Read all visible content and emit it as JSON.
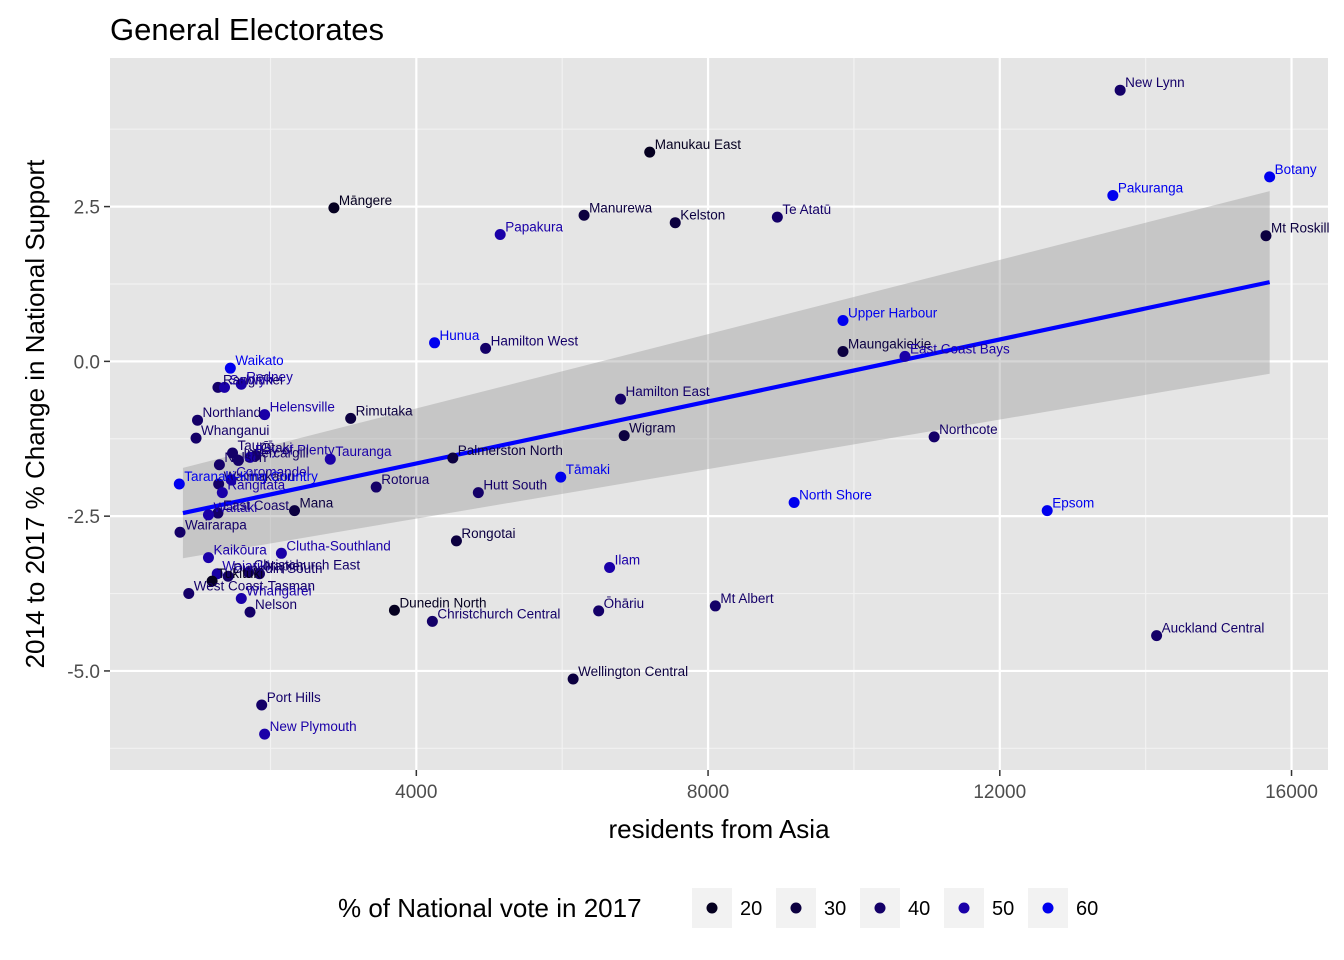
{
  "chart_data": {
    "type": "scatter",
    "title": "General Electorates",
    "xlabel": "residents from Asia",
    "ylabel": "2014 to 2017 % Change in National Support",
    "xlim": [
      -200,
      16500
    ],
    "ylim": [
      -6.6,
      4.9
    ],
    "x_ticks": [
      4000,
      8000,
      12000,
      16000
    ],
    "x_tick_labels": [
      "4000",
      "8000",
      "12000",
      "16000"
    ],
    "y_ticks": [
      2.5,
      0.0,
      -2.5,
      -5.0
    ],
    "y_tick_labels": [
      "2.5",
      "0.0",
      "-2.5",
      "-5.0"
    ],
    "grid": true,
    "legend": {
      "title": "% of National vote in 2017",
      "placement": "bottom",
      "entries": [
        {
          "label": "20",
          "color": "#050020"
        },
        {
          "label": "30",
          "color": "#0c0040"
        },
        {
          "label": "40",
          "color": "#140068"
        },
        {
          "label": "50",
          "color": "#1a00a8"
        },
        {
          "label": "60",
          "color": "#0000ee"
        }
      ]
    },
    "trend_line": {
      "x": [
        800,
        15700
      ],
      "y": [
        -2.45,
        1.28
      ],
      "ci_upper": [
        -1.72,
        2.75
      ],
      "ci_lower": [
        -3.18,
        -0.2
      ],
      "color": "#0000ff"
    },
    "points": [
      {
        "label": "New Lynn",
        "x": 13650,
        "y": 4.38,
        "color": "#140068"
      },
      {
        "label": "Manukau East",
        "x": 7200,
        "y": 3.38,
        "color": "#050020"
      },
      {
        "label": "Botany",
        "x": 15700,
        "y": 2.98,
        "color": "#0000ee"
      },
      {
        "label": "Pakuranga",
        "x": 13550,
        "y": 2.68,
        "color": "#0000ee"
      },
      {
        "label": "Māngere",
        "x": 2870,
        "y": 2.48,
        "color": "#050020"
      },
      {
        "label": "Manurewa",
        "x": 6300,
        "y": 2.36,
        "color": "#0c0040"
      },
      {
        "label": "Te Atatū",
        "x": 8950,
        "y": 2.33,
        "color": "#140068"
      },
      {
        "label": "Kelston",
        "x": 7550,
        "y": 2.24,
        "color": "#0c0040"
      },
      {
        "label": "Papakura",
        "x": 5150,
        "y": 2.05,
        "color": "#1a00a8"
      },
      {
        "label": "Mt Roskill",
        "x": 15650,
        "y": 2.03,
        "color": "#0c0040"
      },
      {
        "label": "Upper Harbour",
        "x": 9850,
        "y": 0.66,
        "color": "#0000ee"
      },
      {
        "label": "Hunua",
        "x": 4250,
        "y": 0.3,
        "color": "#0000ee"
      },
      {
        "label": "Hamilton West",
        "x": 4950,
        "y": 0.21,
        "color": "#140068"
      },
      {
        "label": "Maungakiekie",
        "x": 9850,
        "y": 0.16,
        "color": "#0c0040"
      },
      {
        "label": "East Coast Bays",
        "x": 10700,
        "y": 0.08,
        "color": "#1a00a8"
      },
      {
        "label": "Waikato",
        "x": 1450,
        "y": -0.11,
        "color": "#0000ee"
      },
      {
        "label": "Rodney",
        "x": 1600,
        "y": -0.37,
        "color": "#1a00a8"
      },
      {
        "label": "Rangitīkei",
        "x": 1280,
        "y": -0.42,
        "color": "#140068"
      },
      {
        "label": "Selwyn",
        "x": 1370,
        "y": -0.42,
        "color": "#1a00a8"
      },
      {
        "label": "Northland",
        "x": 1000,
        "y": -0.95,
        "color": "#140068"
      },
      {
        "label": "Helensville",
        "x": 1920,
        "y": -0.86,
        "color": "#1a00a8"
      },
      {
        "label": "Rimutaka",
        "x": 3100,
        "y": -0.92,
        "color": "#0c0040"
      },
      {
        "label": "Whanganui",
        "x": 980,
        "y": -1.24,
        "color": "#140068"
      },
      {
        "label": "Hamilton East",
        "x": 6800,
        "y": -0.61,
        "color": "#140068"
      },
      {
        "label": "Wigram",
        "x": 6850,
        "y": -1.2,
        "color": "#0c0040"
      },
      {
        "label": "Northcote",
        "x": 11100,
        "y": -1.22,
        "color": "#140068"
      },
      {
        "label": "Taupō",
        "x": 1480,
        "y": -1.48,
        "color": "#140068"
      },
      {
        "label": "Ōtaki",
        "x": 1800,
        "y": -1.52,
        "color": "#140068"
      },
      {
        "label": "Bay of Plenty",
        "x": 1720,
        "y": -1.55,
        "color": "#1a00a8"
      },
      {
        "label": "Invercargill",
        "x": 1560,
        "y": -1.6,
        "color": "#140068"
      },
      {
        "label": "Tauranga",
        "x": 2820,
        "y": -1.58,
        "color": "#1a00a8"
      },
      {
        "label": "Palmerston North",
        "x": 4500,
        "y": -1.56,
        "color": "#0c0040"
      },
      {
        "label": "Nelson",
        "x": 1300,
        "y": -1.67,
        "color": "#140068"
      },
      {
        "label": "Tāmaki",
        "x": 5980,
        "y": -1.87,
        "color": "#0000ee"
      },
      {
        "label": "Coromandel",
        "x": 1460,
        "y": -1.91,
        "color": "#1a00a8"
      },
      {
        "label": "Waimakariri",
        "x": 1290,
        "y": -1.98,
        "color": "#140068"
      },
      {
        "label": "Taranaki-King Country",
        "x": 750,
        "y": -1.98,
        "color": "#0000ee"
      },
      {
        "label": "Rotorua",
        "x": 3450,
        "y": -2.03,
        "color": "#140068"
      },
      {
        "label": "Hutt South",
        "x": 4850,
        "y": -2.12,
        "color": "#140068"
      },
      {
        "label": "Rangitata",
        "x": 1340,
        "y": -2.12,
        "color": "#1a00a8"
      },
      {
        "label": "North Shore",
        "x": 9180,
        "y": -2.28,
        "color": "#0000ee"
      },
      {
        "label": "Epsom",
        "x": 12650,
        "y": -2.41,
        "color": "#0000ee"
      },
      {
        "label": "Mana",
        "x": 2330,
        "y": -2.41,
        "color": "#0c0040"
      },
      {
        "label": "East Coast",
        "x": 1280,
        "y": -2.45,
        "color": "#140068"
      },
      {
        "label": "Waitaki",
        "x": 1150,
        "y": -2.48,
        "color": "#1a00a8"
      },
      {
        "label": "Wairarapa",
        "x": 760,
        "y": -2.76,
        "color": "#140068"
      },
      {
        "label": "Rongotai",
        "x": 4550,
        "y": -2.9,
        "color": "#0c0040"
      },
      {
        "label": "Clutha-Southland",
        "x": 2150,
        "y": -3.1,
        "color": "#1a00a8"
      },
      {
        "label": "Kaikōura",
        "x": 1150,
        "y": -3.17,
        "color": "#1a00a8"
      },
      {
        "label": "Ilam",
        "x": 6650,
        "y": -3.33,
        "color": "#1a00a8"
      },
      {
        "label": "Christchurch East",
        "x": 1700,
        "y": -3.41,
        "color": "#140068"
      },
      {
        "label": "Waiariki",
        "x": 1270,
        "y": -3.43,
        "color": "#1a00a8"
      },
      {
        "label": "Napier",
        "x": 1850,
        "y": -3.43,
        "color": "#140068"
      },
      {
        "label": "Dunedin South",
        "x": 1420,
        "y": -3.47,
        "color": "#140068"
      },
      {
        "label": "Tukituki",
        "x": 1200,
        "y": -3.55,
        "color": "#050020"
      },
      {
        "label": "West Coast-Tasman",
        "x": 880,
        "y": -3.75,
        "color": "#140068"
      },
      {
        "label": "Whangārei",
        "x": 1600,
        "y": -3.83,
        "color": "#1a00a8"
      },
      {
        "label": "Nelson",
        "x": 1720,
        "y": -4.05,
        "color": "#140068"
      },
      {
        "label": "Dunedin North",
        "x": 3700,
        "y": -4.02,
        "color": "#050020"
      },
      {
        "label": "Ōhāriu",
        "x": 6500,
        "y": -4.03,
        "color": "#140068"
      },
      {
        "label": "Mt Albert",
        "x": 8100,
        "y": -3.95,
        "color": "#140068"
      },
      {
        "label": "Christchurch Central",
        "x": 4220,
        "y": -4.2,
        "color": "#140068"
      },
      {
        "label": "Auckland Central",
        "x": 14150,
        "y": -4.43,
        "color": "#140068"
      },
      {
        "label": "Wellington Central",
        "x": 6150,
        "y": -5.13,
        "color": "#0c0040"
      },
      {
        "label": "Port Hills",
        "x": 1880,
        "y": -5.55,
        "color": "#140068"
      },
      {
        "label": "New Plymouth",
        "x": 1920,
        "y": -6.02,
        "color": "#1a00a8"
      }
    ]
  }
}
